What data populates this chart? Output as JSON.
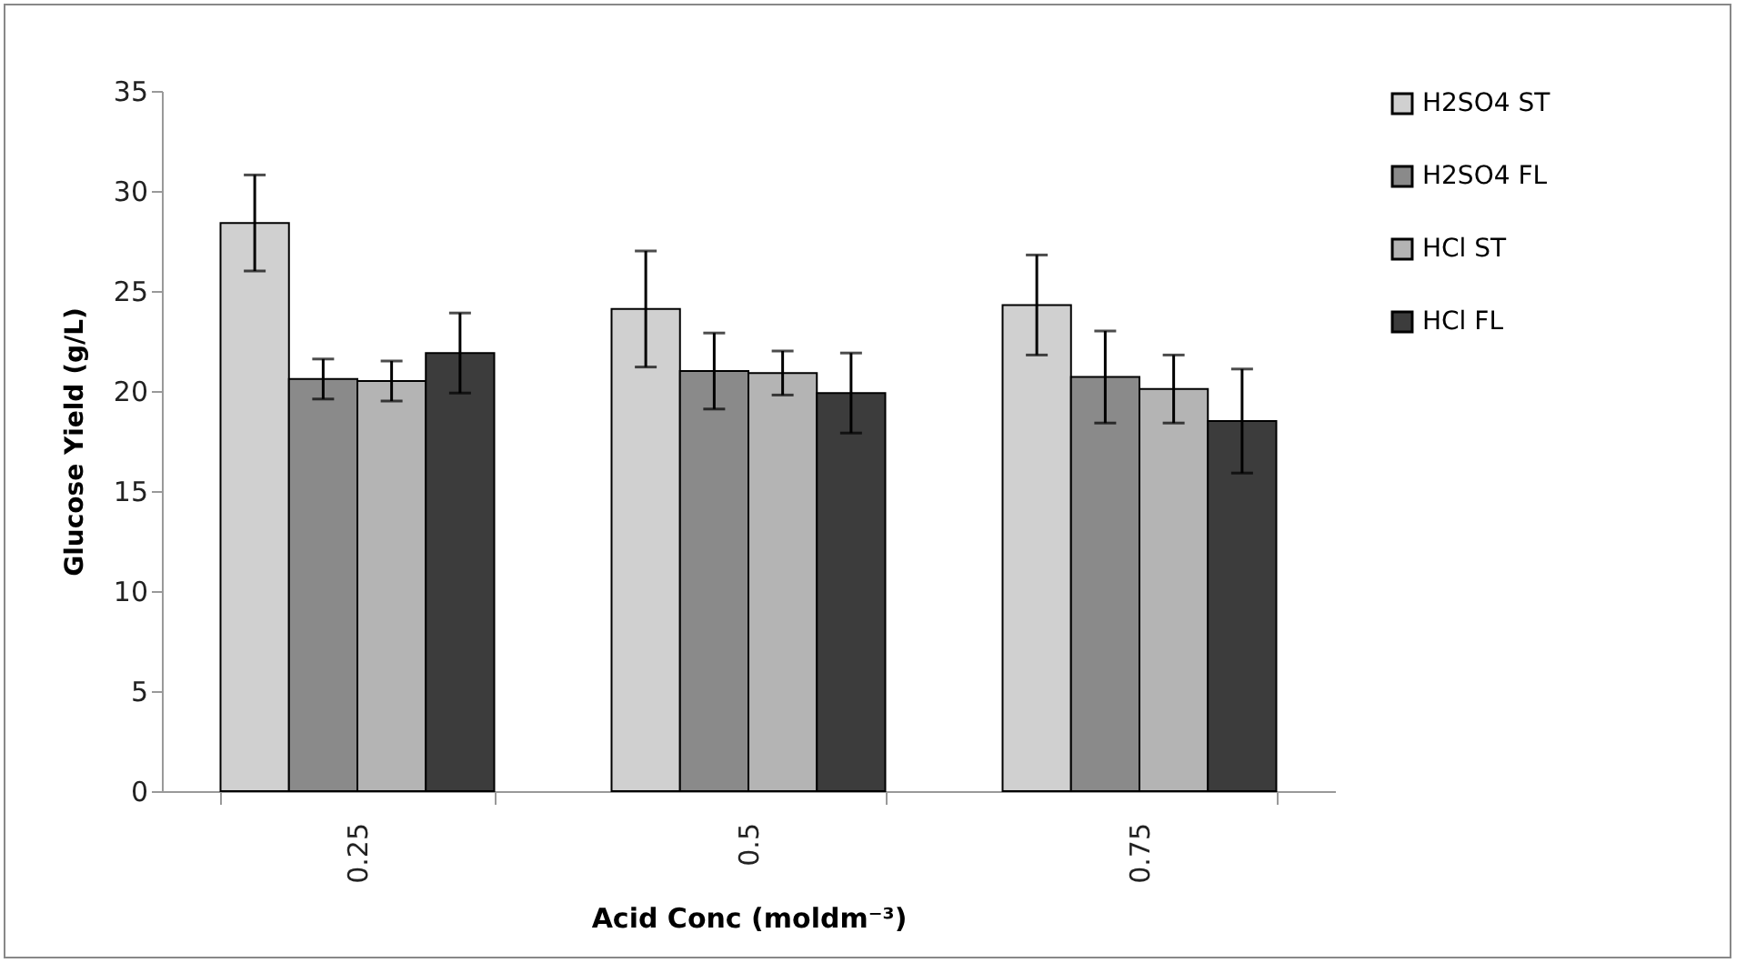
{
  "chart_data": {
    "type": "bar",
    "xlabel": "Acid Conc (moldm⁻³)",
    "ylabel": "Glucose Yield (g/L)",
    "categories": [
      "0.25",
      "0.5",
      "0.75"
    ],
    "series": [
      {
        "name": "H2SO4 ST",
        "color": "#d0d0d0",
        "values": [
          28.4,
          24.1,
          24.3
        ],
        "errors": [
          2.4,
          2.9,
          2.5
        ]
      },
      {
        "name": "H2SO4 FL",
        "color": "#8a8a8a",
        "values": [
          20.6,
          21.0,
          20.7
        ],
        "errors": [
          1.0,
          1.9,
          2.3
        ]
      },
      {
        "name": "HCl ST",
        "color": "#b4b4b4",
        "values": [
          20.5,
          20.9,
          20.1
        ],
        "errors": [
          1.0,
          1.1,
          1.7
        ]
      },
      {
        "name": "HCl FL",
        "color": "#3c3c3c",
        "values": [
          21.9,
          19.9,
          18.5
        ],
        "errors": [
          2.0,
          2.0,
          2.6
        ]
      }
    ],
    "ylim": [
      0,
      35
    ],
    "yticks": [
      0,
      5,
      10,
      15,
      20,
      25,
      30,
      35
    ],
    "grid": false,
    "legend": "right"
  }
}
